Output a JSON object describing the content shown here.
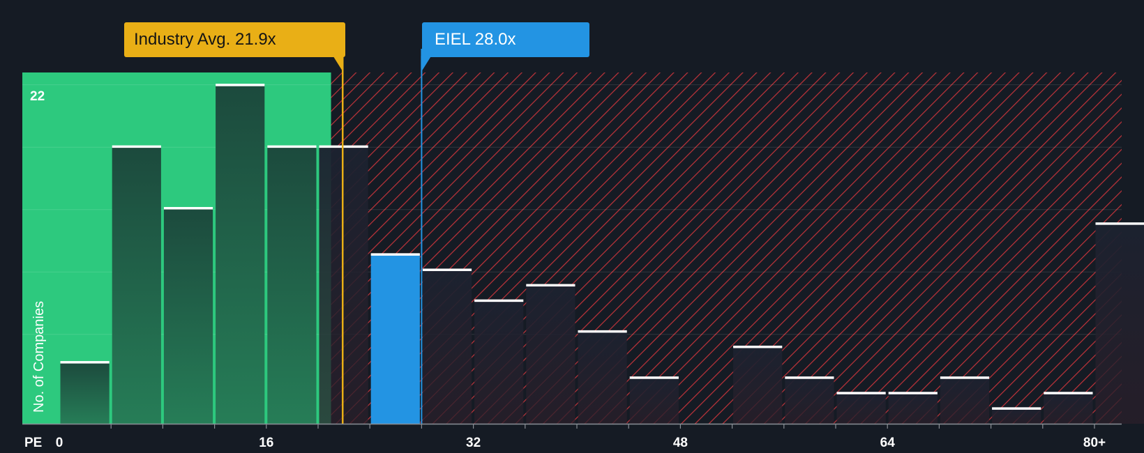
{
  "chart_data": {
    "type": "bar",
    "xlabel": "PE",
    "ylabel": "No. of Companies",
    "x_ticks": [
      "0",
      "16",
      "32",
      "48",
      "64",
      "80+"
    ],
    "x_tick_values": [
      0,
      16,
      32,
      48,
      64,
      80
    ],
    "ylim": [
      0,
      22.8
    ],
    "y_max_label": "22",
    "y_max_value": 22,
    "bin_width": 4,
    "bins": [
      {
        "x0": 0,
        "x1": 4,
        "count": 4
      },
      {
        "x0": 4,
        "x1": 8,
        "count": 18
      },
      {
        "x0": 8,
        "x1": 12,
        "count": 14
      },
      {
        "x0": 12,
        "x1": 16,
        "count": 22
      },
      {
        "x0": 16,
        "x1": 20,
        "count": 18
      },
      {
        "x0": 20,
        "x1": 24,
        "count": 18
      },
      {
        "x0": 24,
        "x1": 28,
        "count": 11,
        "highlight": true
      },
      {
        "x0": 28,
        "x1": 32,
        "count": 10
      },
      {
        "x0": 32,
        "x1": 36,
        "count": 8
      },
      {
        "x0": 36,
        "x1": 40,
        "count": 9
      },
      {
        "x0": 40,
        "x1": 44,
        "count": 6
      },
      {
        "x0": 44,
        "x1": 48,
        "count": 3
      },
      {
        "x0": 48,
        "x1": 52,
        "count": 0
      },
      {
        "x0": 52,
        "x1": 56,
        "count": 5
      },
      {
        "x0": 56,
        "x1": 60,
        "count": 3
      },
      {
        "x0": 60,
        "x1": 64,
        "count": 2
      },
      {
        "x0": 64,
        "x1": 68,
        "count": 2
      },
      {
        "x0": 68,
        "x1": 72,
        "count": 3
      },
      {
        "x0": 72,
        "x1": 76,
        "count": 1
      },
      {
        "x0": 76,
        "x1": 80,
        "count": 2
      },
      {
        "x0": 80,
        "x1": 84,
        "count": 13
      }
    ],
    "industry_avg": {
      "label": "Industry Avg. 21.9x",
      "value": 21.9
    },
    "company": {
      "label": "EIEL 28.0x",
      "value": 28.0
    },
    "fair_region_end": 21.0
  },
  "colors": {
    "background": "#151b24",
    "fair_green": "#2dc97e",
    "bar_dark": "#1b4a3b",
    "highlight_blue": "#2394e3",
    "hatch_red": "#c0333a",
    "industry_gold": "#e9af16",
    "axis": "#8a8f96",
    "text": "#ffffff"
  }
}
